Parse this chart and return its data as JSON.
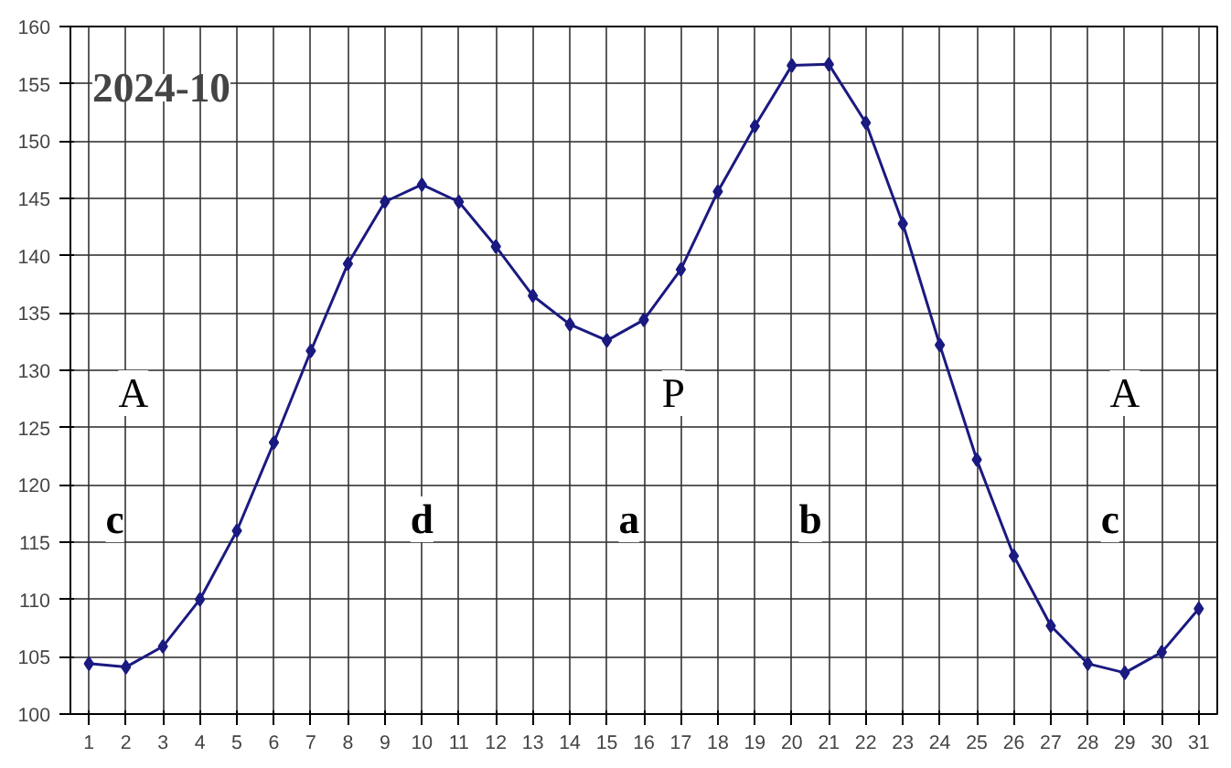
{
  "chart_data": {
    "type": "line",
    "title": "2024-10",
    "x": [
      1,
      2,
      3,
      4,
      5,
      6,
      7,
      8,
      9,
      10,
      11,
      12,
      13,
      14,
      15,
      16,
      17,
      18,
      19,
      20,
      21,
      22,
      23,
      24,
      25,
      26,
      27,
      28,
      29,
      30,
      31
    ],
    "series": [
      {
        "color": "#1a1a80",
        "values": [
          104.4,
          104.1,
          105.9,
          110,
          116,
          123.7,
          131.7,
          139.3,
          144.7,
          146.2,
          144.7,
          140.8,
          136.5,
          134,
          132.6,
          134.4,
          138.8,
          145.6,
          151.3,
          156.6,
          156.7,
          151.6,
          142.8,
          132.2,
          122.2,
          113.8,
          107.7,
          104.4,
          103.6,
          105.4,
          109.2
        ]
      }
    ],
    "xlim": [
      0.5,
      31.5
    ],
    "ylim": [
      100,
      160
    ],
    "xticks": [
      1,
      2,
      3,
      4,
      5,
      6,
      7,
      8,
      9,
      10,
      11,
      12,
      13,
      14,
      15,
      16,
      17,
      18,
      19,
      20,
      21,
      22,
      23,
      24,
      25,
      26,
      27,
      28,
      29,
      30,
      31
    ],
    "yticks": [
      100,
      105,
      110,
      115,
      120,
      125,
      130,
      135,
      140,
      145,
      150,
      155,
      160
    ],
    "grid": true,
    "marker": "diamond",
    "line_style": "solid",
    "annotations": [
      {
        "text": "A",
        "x": 2.2,
        "y": 128
      },
      {
        "text": "c",
        "x": 1.7,
        "y": 117
      },
      {
        "text": "d",
        "x": 10,
        "y": 117
      },
      {
        "text": "a",
        "x": 15.6,
        "y": 117
      },
      {
        "text": "P",
        "x": 16.8,
        "y": 128
      },
      {
        "text": "b",
        "x": 20.5,
        "y": 117
      },
      {
        "text": "A",
        "x": 29,
        "y": 128
      },
      {
        "text": "c",
        "x": 28.6,
        "y": 117
      }
    ]
  }
}
